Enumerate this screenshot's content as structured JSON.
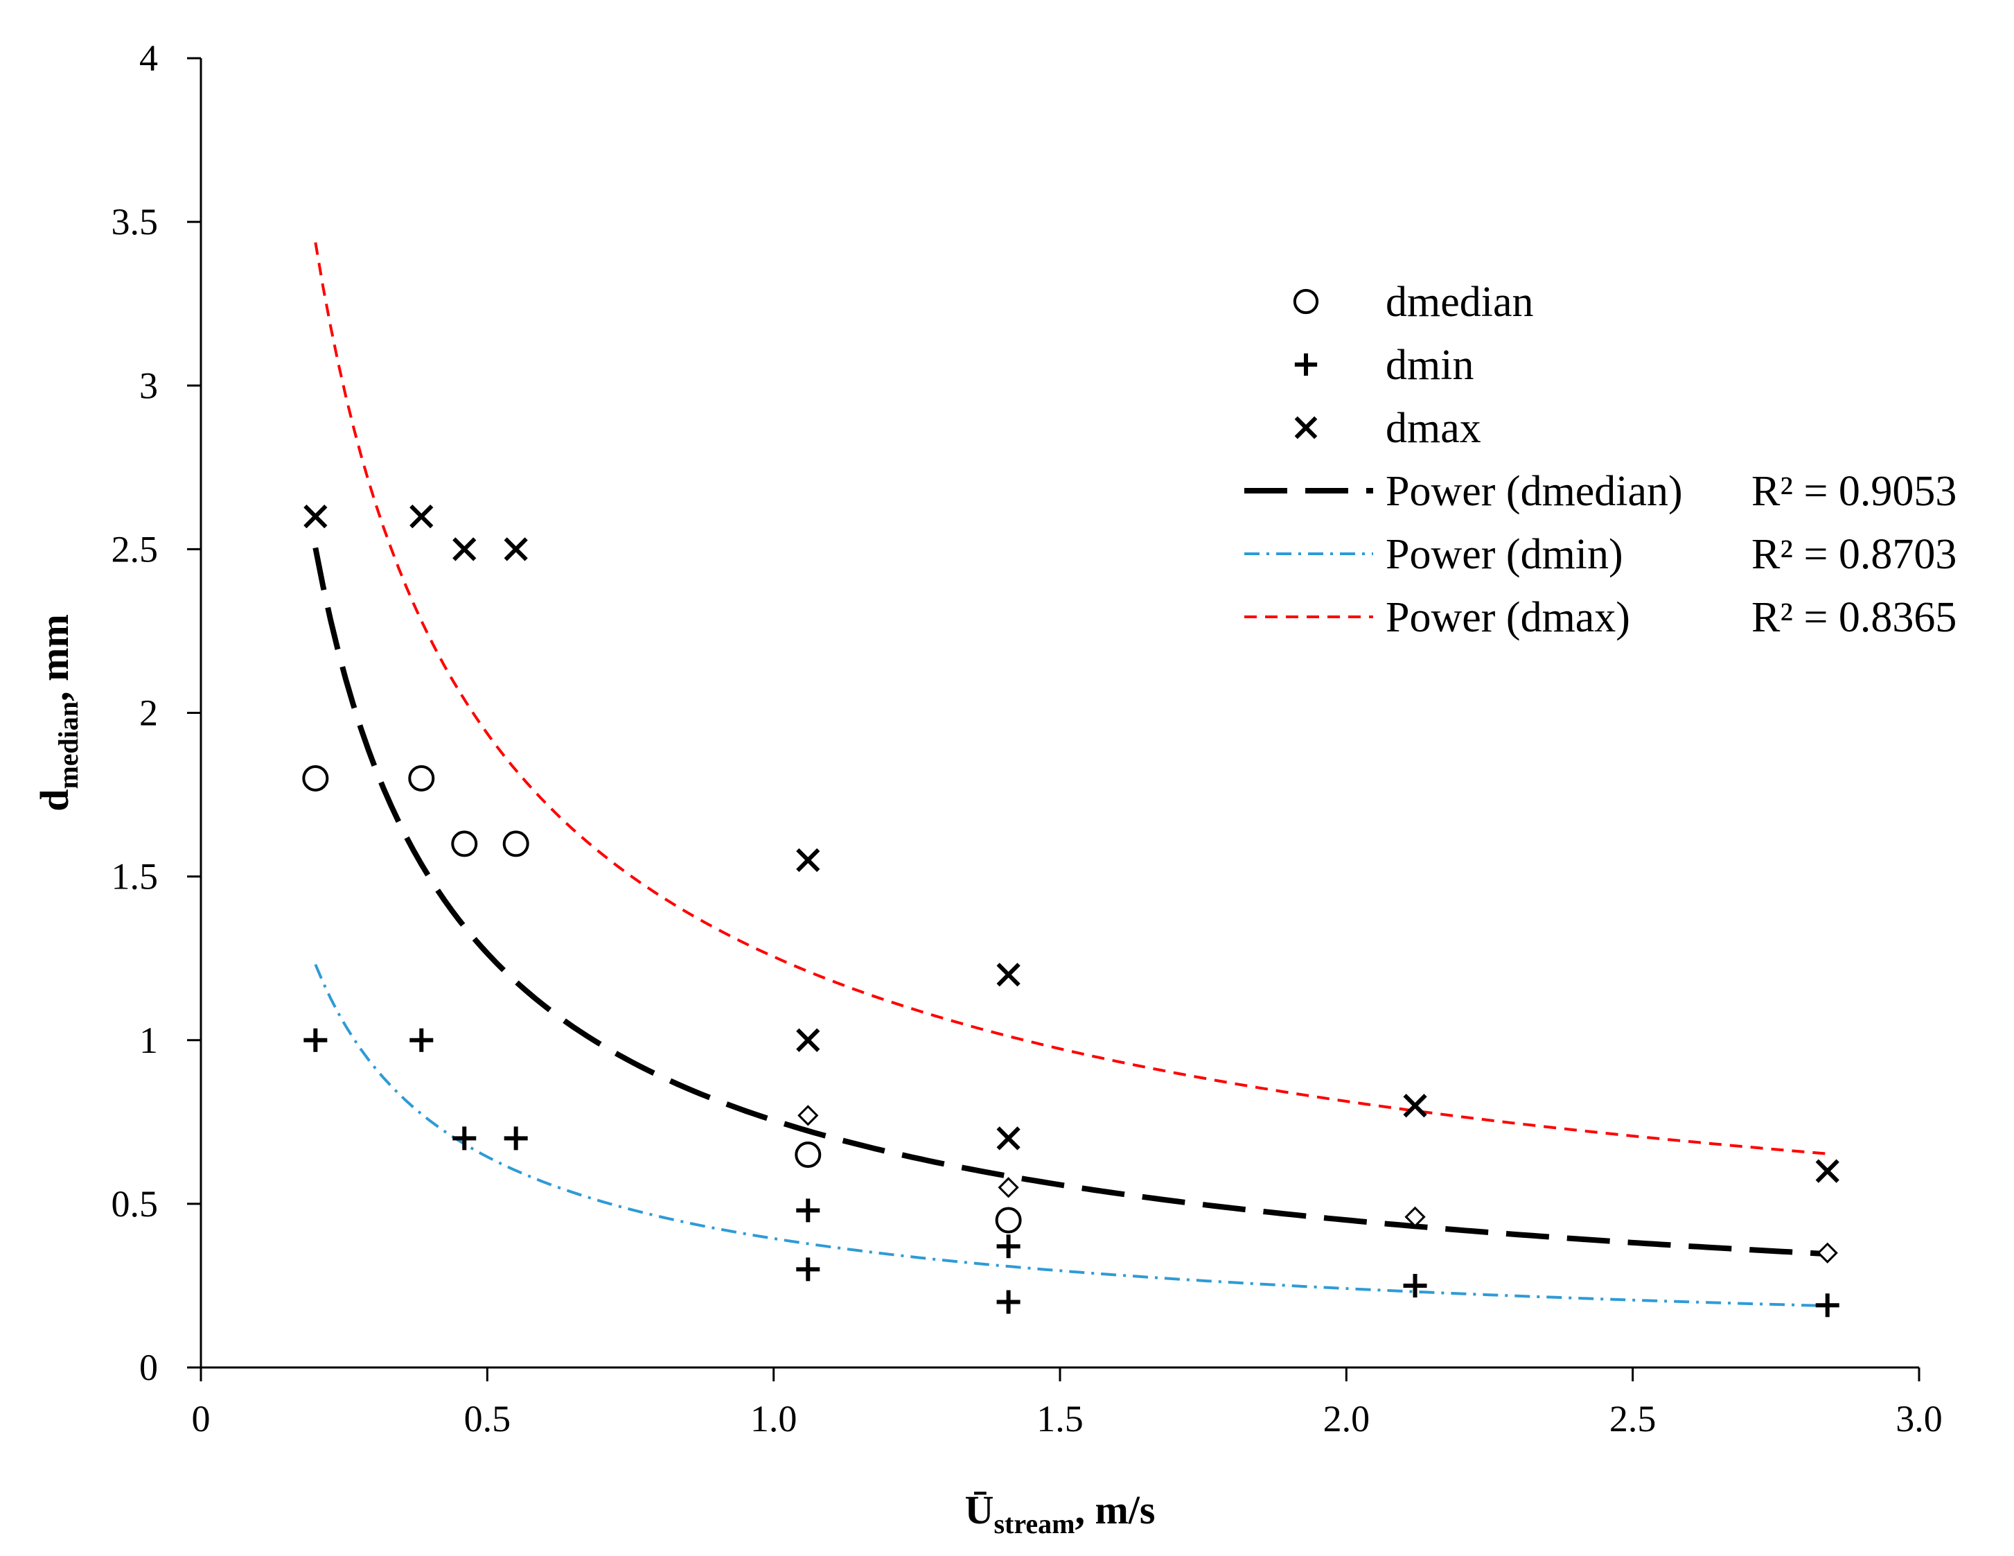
{
  "chart_data": {
    "type": "scatter",
    "title": "",
    "xlabel": {
      "main": "Ū",
      "sub": "stream",
      "suffix": ", m/s"
    },
    "ylabel": {
      "main": "d",
      "sub": "median",
      "suffix": ", mm"
    },
    "xlim": [
      0,
      3.0
    ],
    "ylim": [
      0,
      4
    ],
    "x_ticks": [
      {
        "value": 0,
        "label": "0"
      },
      {
        "value": 0.5,
        "label": "0.5"
      },
      {
        "value": 1.0,
        "label": "1.0"
      },
      {
        "value": 1.5,
        "label": "1.5"
      },
      {
        "value": 2.0,
        "label": "2.0"
      },
      {
        "value": 2.5,
        "label": "2.5"
      },
      {
        "value": 3.0,
        "label": "3.0"
      }
    ],
    "y_ticks": [
      {
        "value": 0,
        "label": "0"
      },
      {
        "value": 0.5,
        "label": "0.5"
      },
      {
        "value": 1,
        "label": "1"
      },
      {
        "value": 1.5,
        "label": "1.5"
      },
      {
        "value": 2,
        "label": "2"
      },
      {
        "value": 2.5,
        "label": "2.5"
      },
      {
        "value": 3,
        "label": "3"
      },
      {
        "value": 3.5,
        "label": "3.5"
      },
      {
        "value": 4,
        "label": "4"
      }
    ],
    "grid": false,
    "legend_position": "right",
    "series": [
      {
        "name": "dmedian",
        "marker": "circle",
        "points": [
          [
            0.2,
            1.8
          ],
          [
            0.385,
            1.8
          ],
          [
            0.46,
            1.6
          ],
          [
            0.55,
            1.6
          ],
          [
            1.06,
            0.65
          ],
          [
            1.41,
            0.45
          ]
        ]
      },
      {
        "name": "dmin",
        "marker": "plus",
        "points": [
          [
            0.2,
            1.0
          ],
          [
            0.385,
            1.0
          ],
          [
            0.46,
            0.7
          ],
          [
            0.55,
            0.7
          ],
          [
            1.06,
            0.48
          ],
          [
            1.06,
            0.3
          ],
          [
            1.41,
            0.37
          ],
          [
            1.41,
            0.2
          ],
          [
            2.12,
            0.25
          ],
          [
            2.84,
            0.19
          ]
        ]
      },
      {
        "name": "dmax",
        "marker": "x",
        "points": [
          [
            0.2,
            2.6
          ],
          [
            0.385,
            2.6
          ],
          [
            0.46,
            2.5
          ],
          [
            0.55,
            2.5
          ],
          [
            1.06,
            1.55
          ],
          [
            1.06,
            1.0
          ],
          [
            1.41,
            1.2
          ],
          [
            1.41,
            0.7
          ],
          [
            2.12,
            0.8
          ],
          [
            2.84,
            0.6
          ]
        ]
      },
      {
        "name": "",
        "marker": "diamond",
        "points": [
          [
            1.06,
            0.77
          ],
          [
            1.41,
            0.55
          ],
          [
            2.12,
            0.46
          ],
          [
            2.84,
            0.35
          ]
        ]
      }
    ],
    "trendlines": [
      {
        "name": "Power (dmedian)",
        "r2": "R² = 0.9053",
        "a": 0.755,
        "b": -0.745,
        "x_range": [
          0.2,
          2.84
        ],
        "color": "#000000",
        "style": "long-dash",
        "width": 8
      },
      {
        "name": "Power (dmin)",
        "r2": "R² = 0.8703",
        "a": 0.394,
        "b": -0.708,
        "x_range": [
          0.2,
          2.84
        ],
        "color": "#2E9BD6",
        "style": "dash-dot",
        "width": 4
      },
      {
        "name": "Power (dmax)",
        "r2": "R² = 0.8365",
        "a": 1.255,
        "b": -0.626,
        "x_range": [
          0.2,
          2.84
        ],
        "color": "#FF0000",
        "style": "short-dash",
        "width": 4
      }
    ]
  }
}
